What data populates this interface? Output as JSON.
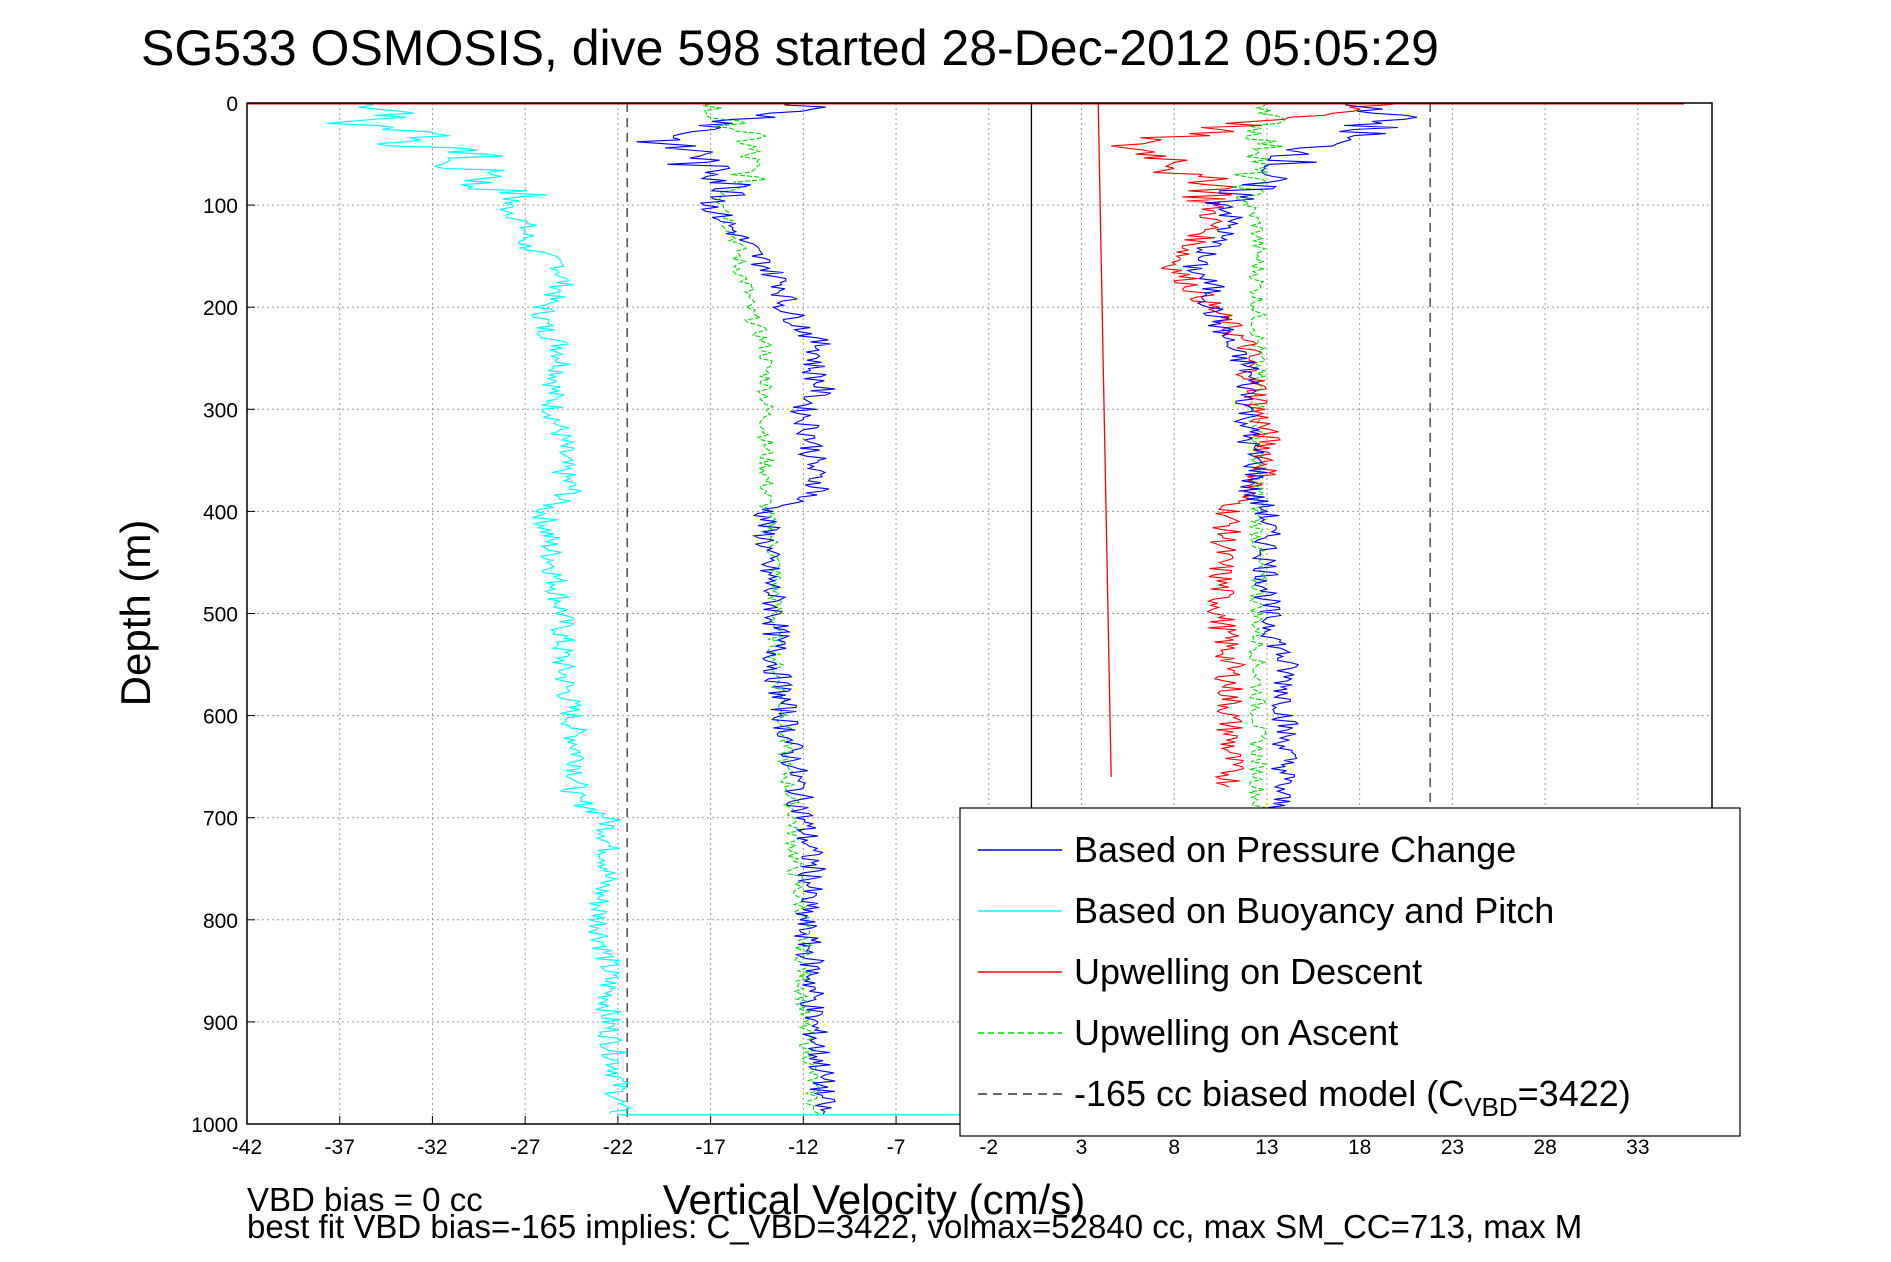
{
  "chart_data": {
    "type": "line",
    "title": "SG533 OSMOSIS, dive 598 started 28-Dec-2012 05:05:29",
    "xlabel": "Vertical Velocity (cm/s)",
    "ylabel": "Depth (m)",
    "xlim": [
      -42,
      37
    ],
    "ylim": [
      0,
      1000
    ],
    "y_reversed": true,
    "grid": true,
    "legend_position": "bottom-right",
    "x_ticks": [
      -42,
      -37,
      -32,
      -27,
      -22,
      -17,
      -12,
      -7,
      -2,
      3,
      8,
      13,
      18,
      23,
      28,
      33
    ],
    "y_ticks": [
      0,
      100,
      200,
      300,
      400,
      500,
      600,
      700,
      800,
      900,
      1000
    ],
    "footer_lines": [
      "VBD bias = 0 cc",
      "best fit VBD bias=-165 implies: C_VBD=3422, volmax=52840 cc, max SM_CC=713, max M"
    ],
    "legend": [
      {
        "label": "Based on Pressure Change",
        "color": "#0000ff",
        "dash": "none"
      },
      {
        "label": "Based on Buoyancy and Pitch",
        "color": "#00ffff",
        "dash": "none"
      },
      {
        "label": "Upwelling on Descent",
        "color": "#ff0000",
        "dash": "none"
      },
      {
        "label": "Upwelling on Ascent",
        "color": "#00dd00",
        "dash": "6,4"
      },
      {
        "label_main": "-165 cc biased model (C",
        "label_sub": "VBD",
        "label_end": "=3422)",
        "color": "#333333",
        "dash": "9,6"
      }
    ],
    "reference_lines": [
      {
        "x": -21.5,
        "color": "#333333",
        "dash": "9,6"
      },
      {
        "x": 21.8,
        "color": "#333333",
        "dash": "9,6"
      },
      {
        "x": 0.3,
        "color": "#000000",
        "dash": "none"
      }
    ],
    "series": [
      {
        "name": "Based on Pressure Change",
        "color": "#0000ff",
        "depth": [
          0,
          10,
          20,
          30,
          40,
          50,
          60,
          70,
          80,
          90,
          100,
          120,
          140,
          160,
          180,
          200,
          220,
          240,
          260,
          280,
          300,
          330,
          360,
          380,
          400,
          450,
          500,
          550,
          600,
          650,
          700,
          750,
          800,
          850,
          900,
          950,
          990
        ],
        "descent": [
          -11,
          -13,
          -16,
          -18,
          -20,
          -17,
          -18,
          -16,
          -16,
          -15,
          -17,
          -16,
          -15,
          -14,
          -13,
          -13,
          -12,
          -11,
          -11.5,
          -11,
          -12,
          -11.5,
          -11.5,
          -11,
          -14,
          -14,
          -13.5,
          -13.5,
          -13,
          -12.5,
          -12,
          -11.5,
          -12,
          -11.5,
          -11.5,
          -11,
          -11
        ],
        "ascent": [
          17,
          20,
          19,
          18,
          16,
          15,
          14,
          13,
          12,
          11.5,
          11,
          11,
          10,
          9,
          10,
          10,
          10.5,
          11,
          12,
          12,
          12,
          12,
          12.5,
          12,
          13,
          13,
          13,
          14,
          14,
          14,
          13.5,
          13.5,
          13,
          13,
          13,
          13,
          13
        ]
      },
      {
        "name": "Based on Buoyancy and Pitch",
        "color": "#00ffff",
        "depth": [
          0,
          10,
          20,
          30,
          40,
          50,
          60,
          70,
          80,
          90,
          100,
          120,
          140,
          160,
          180,
          200,
          220,
          240,
          260,
          280,
          300,
          330,
          360,
          380,
          400,
          450,
          500,
          550,
          600,
          650,
          680,
          700,
          750,
          780,
          800,
          850,
          900,
          950,
          990
        ],
        "values": [
          -36,
          -33,
          -37,
          -31,
          -34,
          -29,
          -32,
          -28,
          -30,
          -27,
          -28,
          -27,
          -27,
          -25,
          -25,
          -26,
          -26,
          -25,
          -25,
          -25.5,
          -25.5,
          -25,
          -25,
          -24.5,
          -26,
          -25.5,
          -25,
          -25,
          -24.5,
          -24,
          -24.5,
          -22.5,
          -22.5,
          -23,
          -23,
          -22.5,
          -22.5,
          -22,
          -22
        ]
      },
      {
        "name": "Upwelling on Descent",
        "color": "#ff0000",
        "x_top": 3.9,
        "x_bottom": 4.6,
        "depth_bottom": 660
      },
      {
        "name": "Upwelling on Descent (ascent profile)",
        "color": "#ff0000",
        "depth": [
          0,
          10,
          20,
          30,
          40,
          50,
          60,
          70,
          80,
          90,
          100,
          120,
          140,
          160,
          180,
          200,
          220,
          240,
          260,
          280,
          300,
          330,
          360,
          380,
          400,
          450,
          500,
          550,
          600,
          650,
          670
        ],
        "values": [
          20,
          17,
          12,
          9,
          5,
          7,
          9,
          8,
          11,
          10,
          10,
          10,
          9,
          8,
          9,
          10,
          11,
          12,
          12,
          12.5,
          12.5,
          13,
          13,
          12,
          11,
          10.5,
          10.5,
          11,
          11,
          11,
          11
        ]
      },
      {
        "name": "Upwelling on Ascent",
        "color": "#00dd00",
        "depth": [
          0,
          10,
          20,
          30,
          40,
          50,
          60,
          70,
          80,
          90,
          100,
          120,
          140,
          160,
          180,
          200,
          220,
          240,
          260,
          280,
          300,
          330,
          360,
          380,
          400,
          450,
          500,
          550,
          600,
          650,
          700,
          750,
          800,
          850,
          900,
          950,
          990
        ],
        "values": [
          13,
          13.5,
          13,
          12.5,
          13,
          13,
          12.5,
          12,
          12,
          12,
          12,
          12.5,
          12.5,
          12.5,
          12.5,
          12.5,
          12.5,
          12.5,
          12.5,
          12.5,
          12.5,
          12.5,
          12.5,
          12.5,
          12.5,
          12.5,
          12.5,
          12.5,
          12.5,
          12.5,
          12.5,
          12.5,
          12.5,
          12.5,
          12.5,
          12.5,
          12.5
        ],
        "descent_values": [
          -17,
          -17,
          -16,
          -15,
          -15,
          -15,
          -15,
          -15,
          -15,
          -16,
          -16,
          -16,
          -15.5,
          -15.5,
          -15,
          -15,
          -14.5,
          -14,
          -14,
          -14,
          -14,
          -14,
          -14,
          -14,
          -14,
          -13.5,
          -13.5,
          -13.5,
          -13,
          -13,
          -12.5,
          -12.5,
          -12,
          -12,
          -12,
          -11.5,
          -11.5
        ]
      }
    ]
  }
}
